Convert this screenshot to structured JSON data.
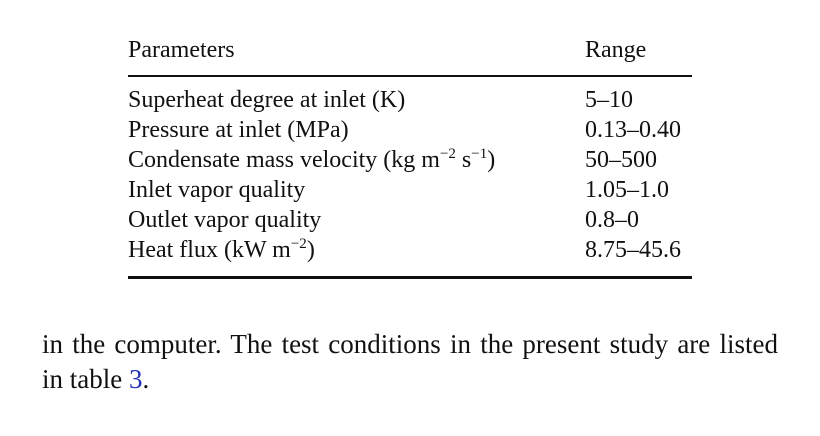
{
  "table": {
    "header": {
      "parameter": "Parameters",
      "range": "Range"
    },
    "rows": [
      {
        "parameter": [
          {
            "text": "Superheat degree at inlet (K)"
          }
        ],
        "range": "5–10"
      },
      {
        "parameter": [
          {
            "text": "Pressure at inlet (MPa)"
          }
        ],
        "range": "0.13–0.40"
      },
      {
        "parameter": [
          {
            "text": "Condensate mass velocity (kg m"
          },
          {
            "sup": "−2"
          },
          {
            "text": " s"
          },
          {
            "sup": "−1"
          },
          {
            "text": ")"
          }
        ],
        "range": "50–500"
      },
      {
        "parameter": [
          {
            "text": "Inlet vapor quality"
          }
        ],
        "range": "1.05–1.0"
      },
      {
        "parameter": [
          {
            "text": "Outlet vapor quality"
          }
        ],
        "range": "0.8–0"
      },
      {
        "parameter": [
          {
            "text": "Heat flux (kW m"
          },
          {
            "sup": "−2"
          },
          {
            "text": ")"
          }
        ],
        "range": "8.75–45.6"
      }
    ]
  },
  "paragraph": {
    "before": "in the computer.  The test conditions in the present study are listed in table ",
    "link": "3",
    "after": "."
  }
}
